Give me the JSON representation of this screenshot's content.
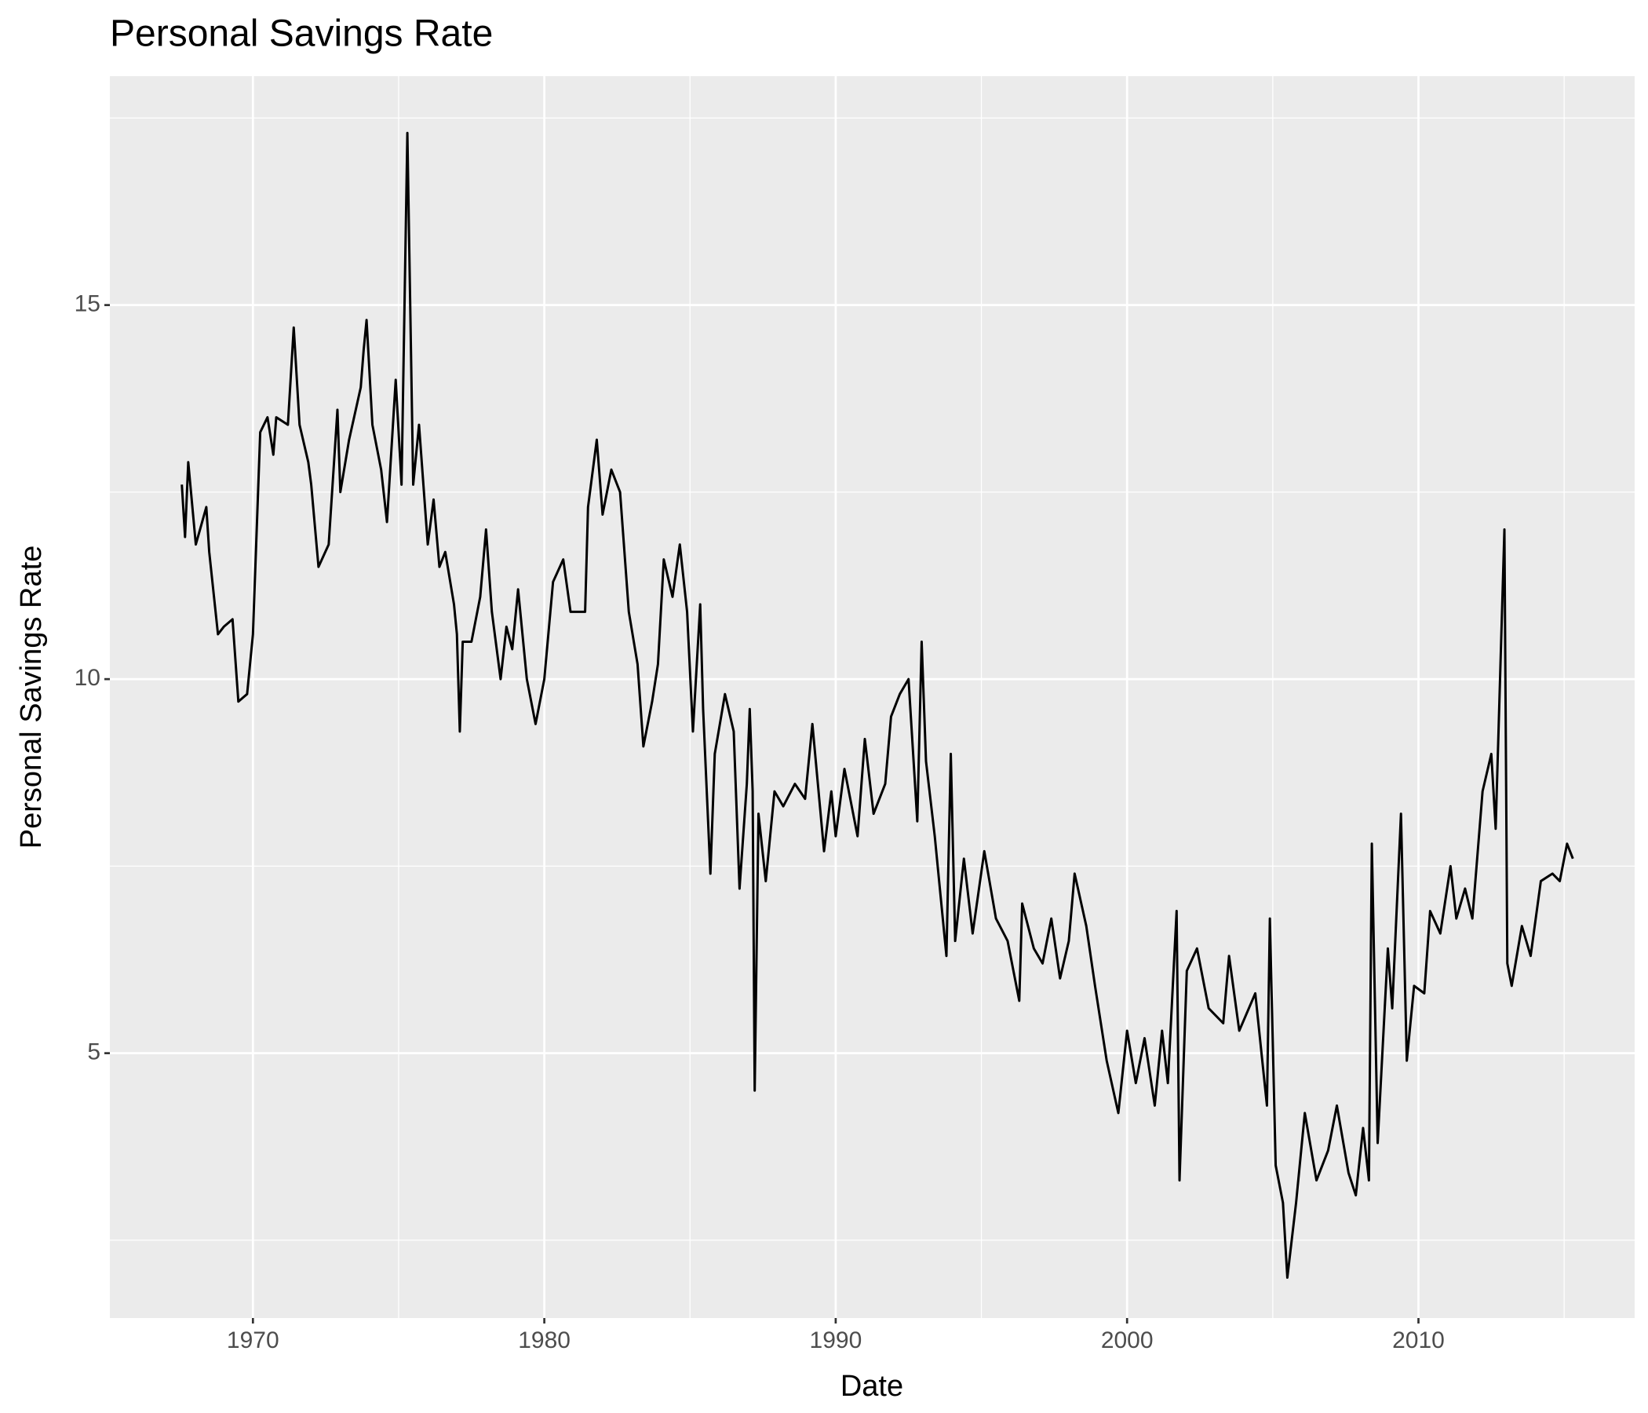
{
  "chart_data": {
    "type": "line",
    "title": "Personal Savings Rate",
    "x_label": "Date",
    "y_label": "Personal Savings Rate",
    "x": [
      1967.56,
      1967.67,
      1967.78,
      1968.04,
      1968.4,
      1968.5,
      1968.8,
      1969.0,
      1969.3,
      1969.5,
      1969.8,
      1970.0,
      1970.25,
      1970.5,
      1970.7,
      1970.8,
      1971.2,
      1971.4,
      1971.6,
      1971.9,
      1972.0,
      1972.25,
      1972.6,
      1972.9,
      1973.0,
      1973.3,
      1973.7,
      1973.8,
      1973.9,
      1974.1,
      1974.4,
      1974.6,
      1974.9,
      1975.1,
      1975.3,
      1975.5,
      1975.7,
      1976.0,
      1976.2,
      1976.4,
      1976.6,
      1976.9,
      1977.0,
      1977.1,
      1977.2,
      1977.5,
      1977.8,
      1978.0,
      1978.2,
      1978.5,
      1978.7,
      1978.9,
      1979.1,
      1979.4,
      1979.7,
      1980.0,
      1980.3,
      1980.65,
      1980.9,
      1981.4,
      1981.5,
      1981.8,
      1982.0,
      1982.3,
      1982.6,
      1982.9,
      1983.2,
      1983.4,
      1983.7,
      1983.9,
      1984.1,
      1984.4,
      1984.65,
      1984.9,
      1985.1,
      1985.35,
      1985.45,
      1985.7,
      1985.85,
      1986.2,
      1986.5,
      1986.7,
      1986.95,
      1987.05,
      1987.15,
      1987.22,
      1987.35,
      1987.6,
      1987.9,
      1988.2,
      1988.6,
      1988.95,
      1989.2,
      1989.6,
      1989.85,
      1990.0,
      1990.3,
      1990.75,
      1991.0,
      1991.3,
      1991.7,
      1991.9,
      1992.2,
      1992.5,
      1992.8,
      1992.95,
      1993.1,
      1993.4,
      1993.8,
      1993.95,
      1994.1,
      1994.4,
      1994.7,
      1995.1,
      1995.5,
      1995.9,
      1996.3,
      1996.4,
      1996.8,
      1997.1,
      1997.4,
      1997.7,
      1998.0,
      1998.2,
      1998.6,
      1998.9,
      1999.3,
      1999.7,
      2000.0,
      2000.3,
      2000.6,
      2000.95,
      2001.2,
      2001.4,
      2001.7,
      2001.8,
      2002.05,
      2002.4,
      2002.8,
      2003.3,
      2003.5,
      2003.85,
      2004.4,
      2004.8,
      2004.9,
      2005.1,
      2005.35,
      2005.5,
      2005.8,
      2006.1,
      2006.5,
      2006.9,
      2007.2,
      2007.6,
      2007.85,
      2008.1,
      2008.3,
      2008.4,
      2008.6,
      2008.95,
      2009.1,
      2009.4,
      2009.6,
      2009.85,
      2010.2,
      2010.4,
      2010.75,
      2011.1,
      2011.3,
      2011.6,
      2011.85,
      2012.2,
      2012.5,
      2012.65,
      2012.95,
      2013.05,
      2013.2,
      2013.55,
      2013.85,
      2014.2,
      2014.6,
      2014.85,
      2015.1,
      2015.3
    ],
    "series": [
      {
        "name": "Personal Savings Rate",
        "color": "#000000",
        "values": [
          12.6,
          11.9,
          12.9,
          11.8,
          12.3,
          11.7,
          10.6,
          10.7,
          10.8,
          9.7,
          9.8,
          10.6,
          13.3,
          13.5,
          13.0,
          13.5,
          13.4,
          14.7,
          13.4,
          12.9,
          12.6,
          11.5,
          11.8,
          13.6,
          12.5,
          13.2,
          13.9,
          14.4,
          14.8,
          13.4,
          12.8,
          12.1,
          14.0,
          12.6,
          17.3,
          12.6,
          13.4,
          11.8,
          12.4,
          11.5,
          11.7,
          11.0,
          10.6,
          9.3,
          10.5,
          10.5,
          11.1,
          12.0,
          10.9,
          10.0,
          10.7,
          10.4,
          11.2,
          10.0,
          9.4,
          10.0,
          11.3,
          11.6,
          10.9,
          10.9,
          12.3,
          13.2,
          12.2,
          12.8,
          12.5,
          10.9,
          10.2,
          9.1,
          9.7,
          10.2,
          11.6,
          11.1,
          11.8,
          10.9,
          9.3,
          11.0,
          9.6,
          7.4,
          9.0,
          9.8,
          9.3,
          7.2,
          8.6,
          9.6,
          8.5,
          4.5,
          8.2,
          7.3,
          8.5,
          8.3,
          8.6,
          8.4,
          9.4,
          7.7,
          8.5,
          7.9,
          8.8,
          7.9,
          9.2,
          8.2,
          8.6,
          9.5,
          9.8,
          10.0,
          8.1,
          10.5,
          8.9,
          7.9,
          6.3,
          9.0,
          6.5,
          7.6,
          6.6,
          7.7,
          6.8,
          6.5,
          5.7,
          7.0,
          6.4,
          6.2,
          6.8,
          6.0,
          6.5,
          7.4,
          6.7,
          5.9,
          4.9,
          4.2,
          5.3,
          4.6,
          5.2,
          4.3,
          5.3,
          4.6,
          6.9,
          3.3,
          6.1,
          6.4,
          5.6,
          5.4,
          6.3,
          5.3,
          5.8,
          4.3,
          6.8,
          3.5,
          3.0,
          2.0,
          3.0,
          4.2,
          3.3,
          3.7,
          4.3,
          3.4,
          3.1,
          4.0,
          3.3,
          7.8,
          3.8,
          6.4,
          5.6,
          8.2,
          4.9,
          5.9,
          5.8,
          6.9,
          6.6,
          7.5,
          6.8,
          7.2,
          6.8,
          8.5,
          9.0,
          8.0,
          12.0,
          6.2,
          5.9,
          6.7,
          6.3,
          7.3,
          7.4,
          7.3,
          7.8,
          7.6
        ]
      }
    ],
    "xlim": [
      1965.09,
      2017.42
    ],
    "xticks": [
      1970,
      1980,
      1990,
      2000,
      2010
    ],
    "ylim": [
      1.46,
      18.06
    ],
    "yticks": [
      5,
      10,
      15
    ],
    "grid": true
  }
}
